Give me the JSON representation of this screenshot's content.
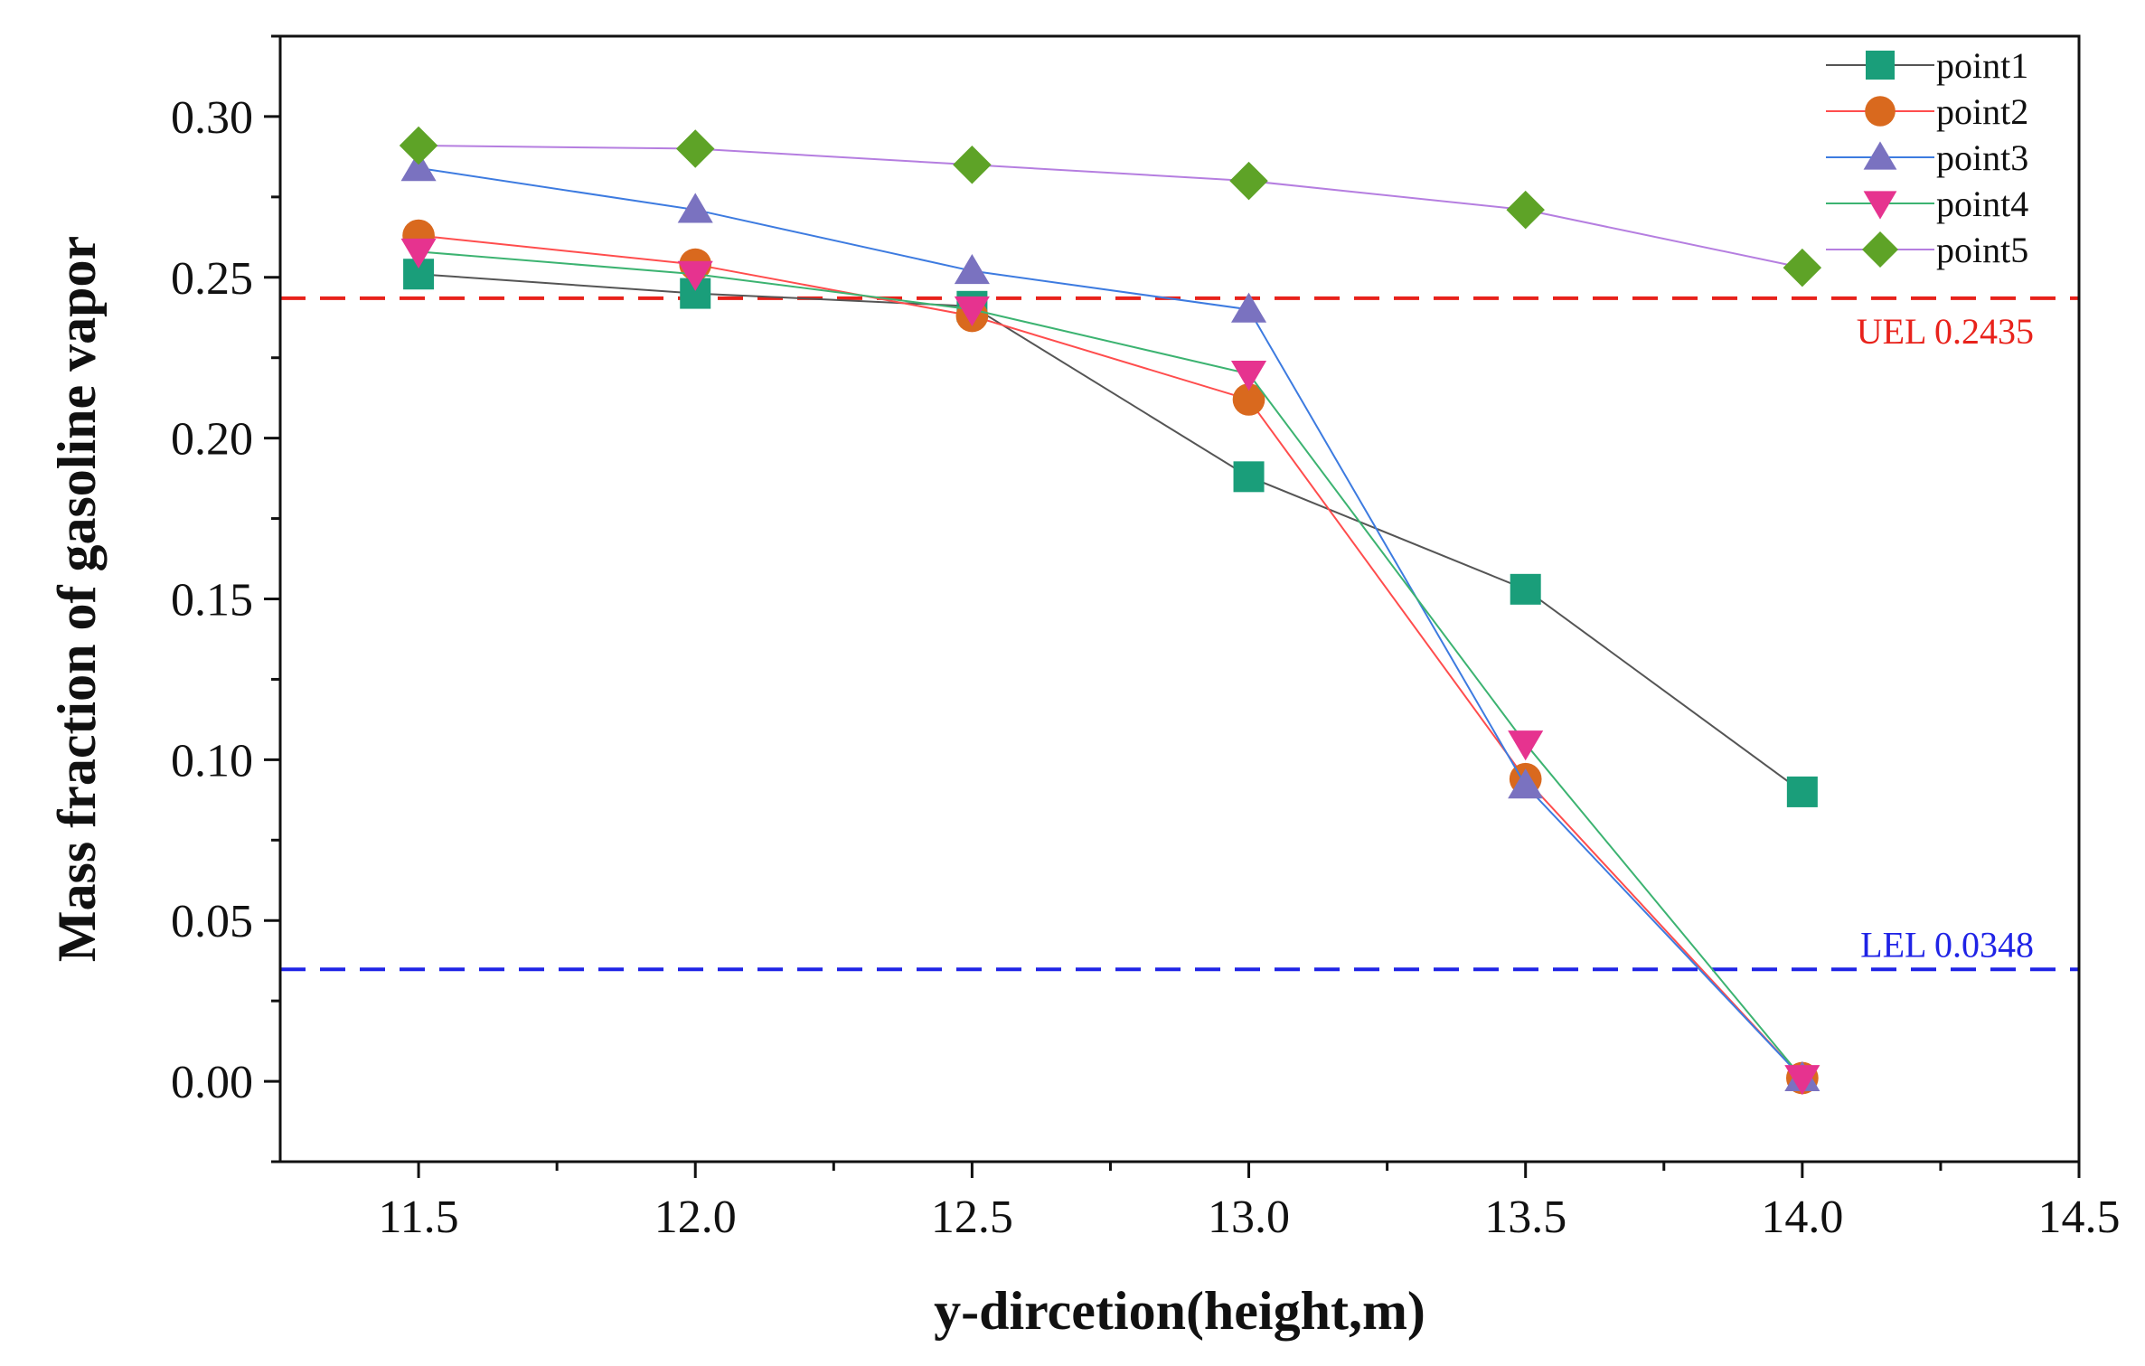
{
  "chart_data": {
    "type": "line",
    "title": "",
    "xlabel": "y-dircetion(height,m)",
    "ylabel": "Mass fraction of gasoline vapor",
    "xlim": [
      11.25,
      14.5
    ],
    "ylim": [
      -0.025,
      0.325
    ],
    "x_ticks": [
      "11.5",
      "12.0",
      "12.5",
      "13.0",
      "13.5",
      "14.0",
      "14.5"
    ],
    "y_ticks": [
      "0.00",
      "0.05",
      "0.10",
      "0.15",
      "0.20",
      "0.25",
      "0.30"
    ],
    "x": [
      11.5,
      12.0,
      12.5,
      13.0,
      13.5,
      14.0
    ],
    "grid": false,
    "legend_position": "top-right",
    "series": [
      {
        "name": "point1",
        "color": "#1a9e7a",
        "marker": "square",
        "line_color": "#555555",
        "values": [
          0.251,
          0.245,
          0.241,
          0.188,
          0.153,
          0.09
        ]
      },
      {
        "name": "point2",
        "color": "#d9691e",
        "marker": "circle",
        "line_color": "#ff4d4d",
        "values": [
          0.263,
          0.254,
          0.238,
          0.212,
          0.094,
          0.001
        ]
      },
      {
        "name": "point3",
        "color": "#7a72c0",
        "marker": "triangle-up",
        "line_color": "#3d7be0",
        "values": [
          0.284,
          0.271,
          0.252,
          0.24,
          0.092,
          0.001
        ]
      },
      {
        "name": "point4",
        "color": "#e6338f",
        "marker": "triangle-down",
        "line_color": "#3cb371",
        "values": [
          0.258,
          0.251,
          0.24,
          0.22,
          0.105,
          0.001
        ]
      },
      {
        "name": "point5",
        "color": "#5ea327",
        "marker": "diamond",
        "line_color": "#b57ee0",
        "values": [
          0.291,
          0.29,
          0.285,
          0.28,
          0.271,
          0.253
        ]
      }
    ],
    "reference_lines": [
      {
        "label": "UEL 0.2435",
        "value": 0.2435,
        "color": "#e8221b"
      },
      {
        "label": "LEL 0.0348",
        "value": 0.0348,
        "color": "#1f23e6"
      }
    ]
  }
}
